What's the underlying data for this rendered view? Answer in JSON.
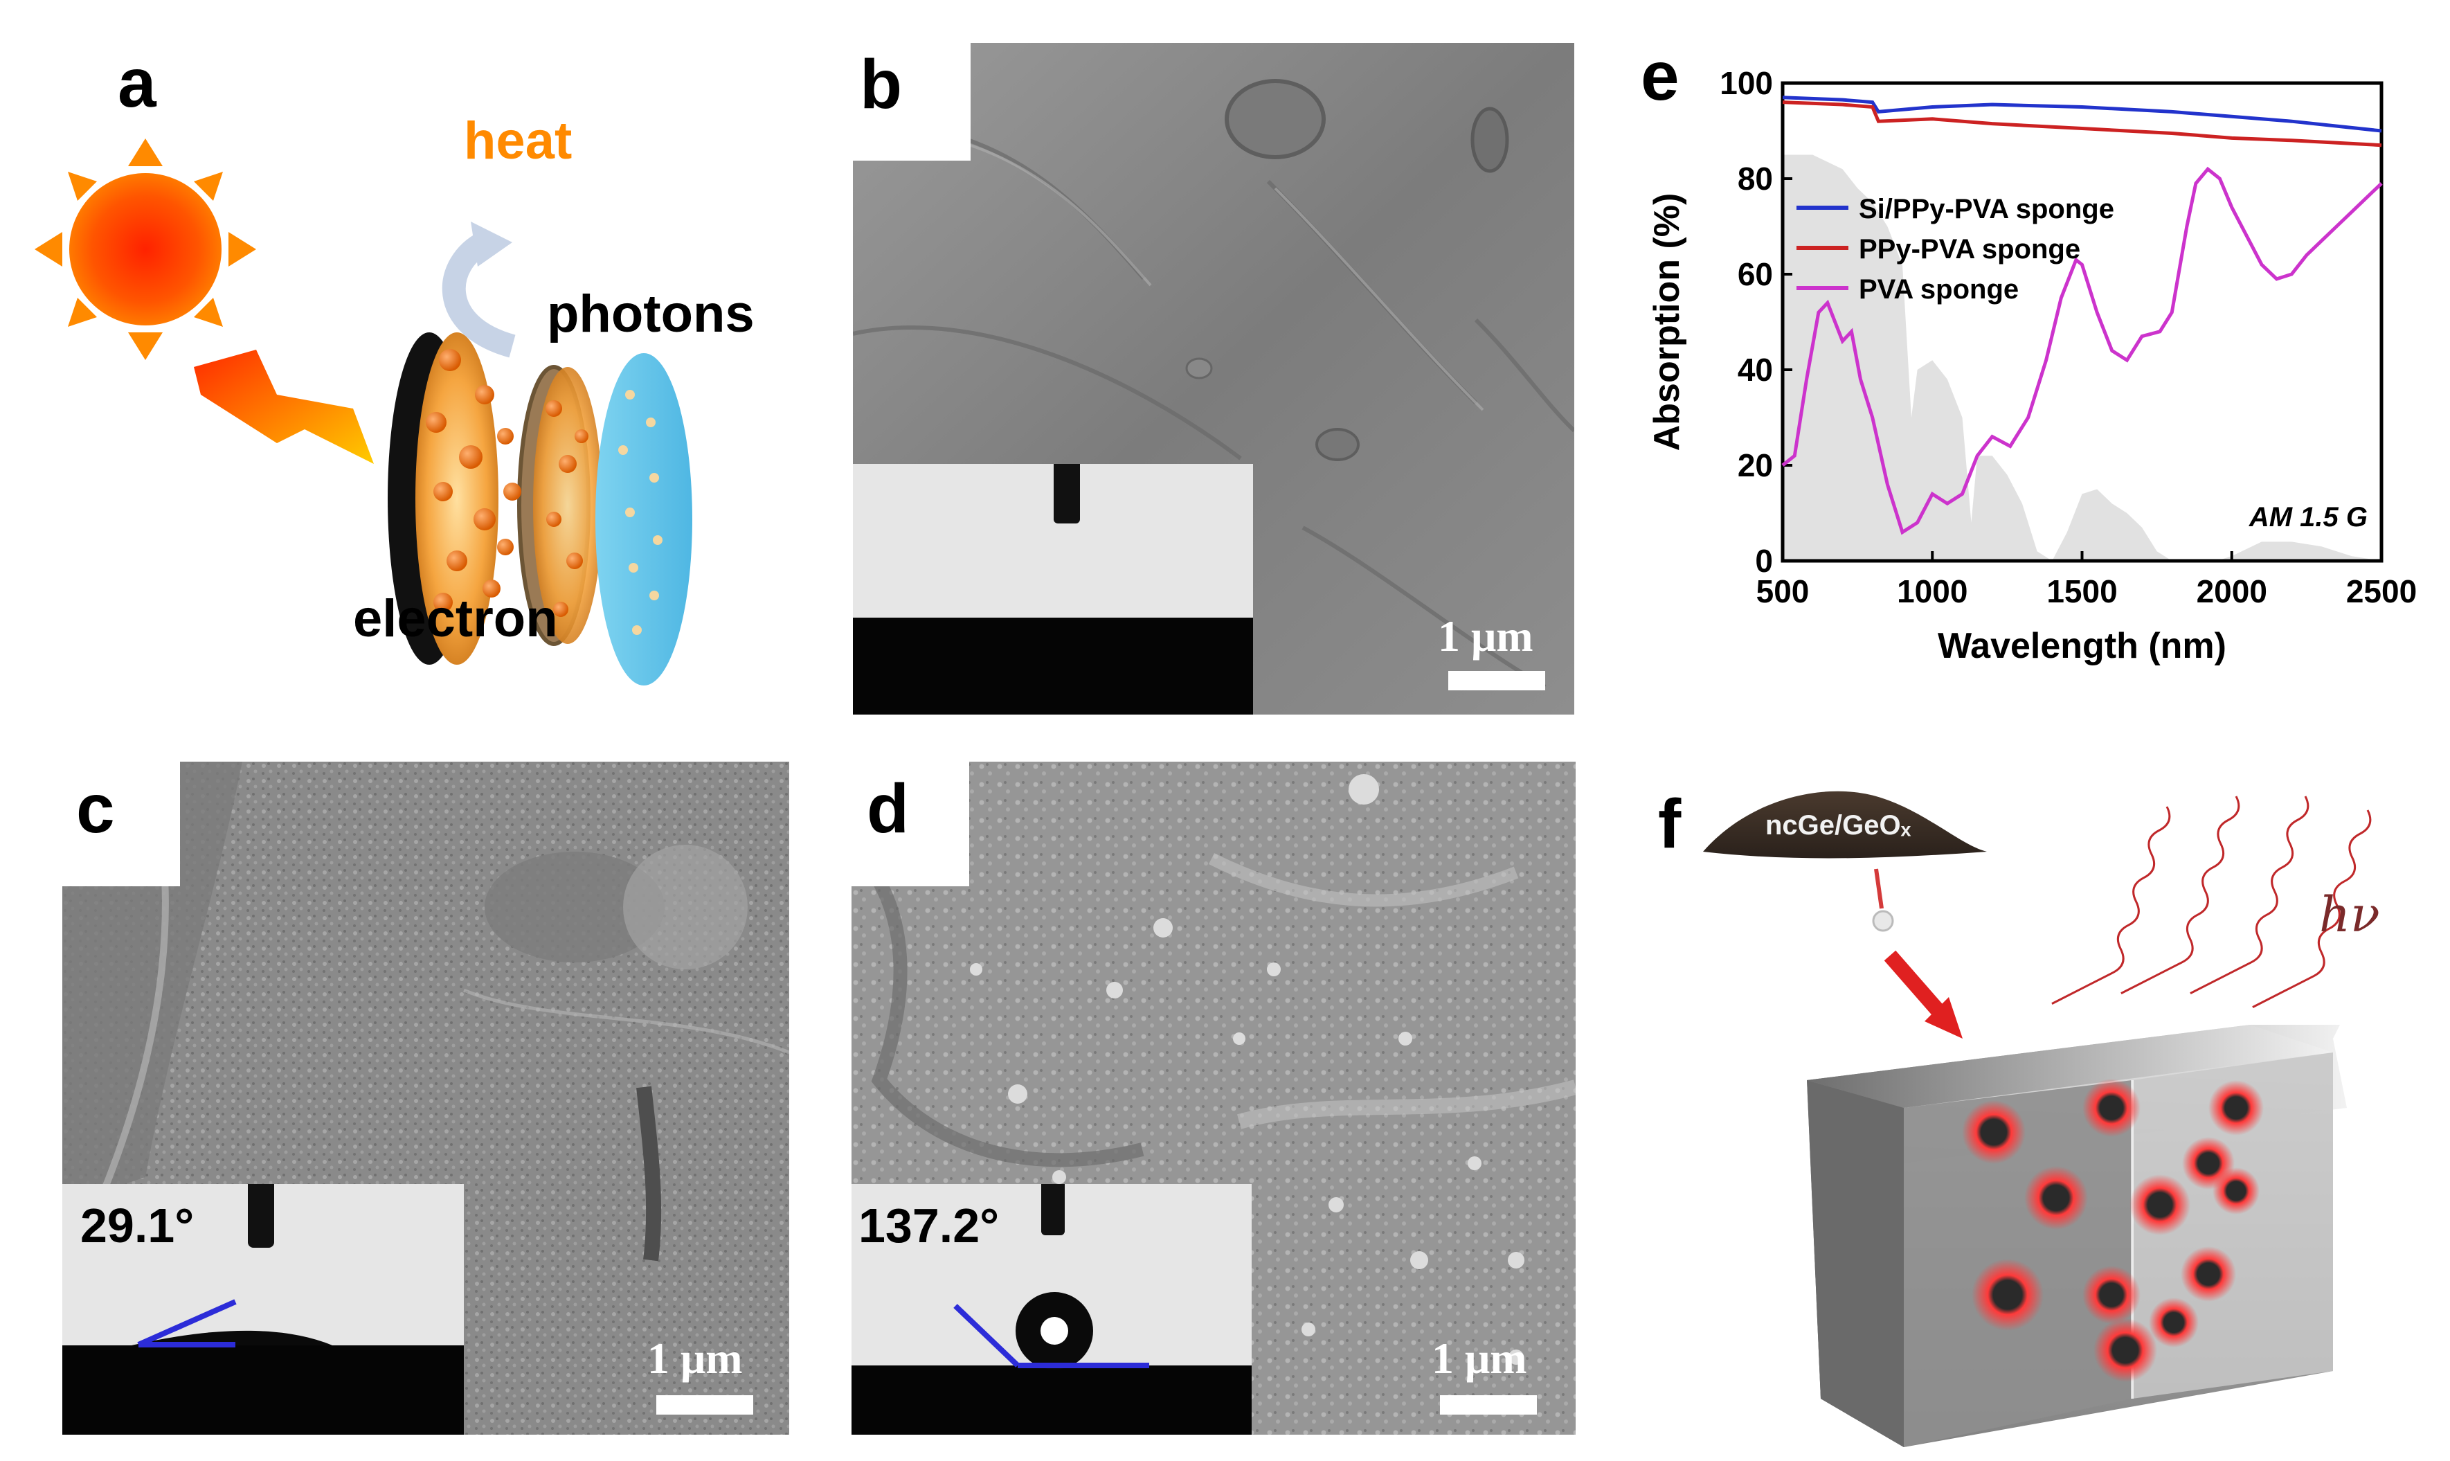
{
  "panels": {
    "a": {
      "label": "a",
      "text_heat": "heat",
      "text_photons": "photons",
      "text_electron": "electron"
    },
    "b": {
      "label": "b",
      "scale": "1 μm"
    },
    "c": {
      "label": "c",
      "scale": "1 μm",
      "contact_angle": "29.1°"
    },
    "d": {
      "label": "d",
      "scale": "1 μm",
      "contact_angle": "137.2°"
    },
    "e": {
      "label": "e"
    },
    "f": {
      "label": "f",
      "powder_label": "ncGe/GeOₓ",
      "hv_label": "hν"
    }
  },
  "chart_data": {
    "type": "line",
    "xlabel": "Wavelength (nm)",
    "ylabel": "Absorption (%)",
    "xlim": [
      500,
      2500
    ],
    "ylim": [
      0,
      100
    ],
    "xticks": [
      500,
      1000,
      1500,
      2000,
      2500
    ],
    "yticks": [
      0,
      20,
      40,
      60,
      80,
      100
    ],
    "annotation": "AM 1.5 G",
    "legend_position": "top-left",
    "series": [
      {
        "name": "Si/PPy-PVA sponge",
        "color": "#2233cc",
        "x": [
          500,
          700,
          800,
          820,
          1000,
          1200,
          1500,
          1800,
          2000,
          2200,
          2500
        ],
        "y": [
          97,
          96.5,
          96,
          94,
          95,
          95.5,
          95,
          94,
          93,
          92,
          90
        ]
      },
      {
        "name": "PPy-PVA sponge",
        "color": "#cc2222",
        "x": [
          500,
          700,
          800,
          820,
          1000,
          1200,
          1500,
          1800,
          2000,
          2200,
          2500
        ],
        "y": [
          96,
          95.5,
          95,
          92,
          92.5,
          91.5,
          90.5,
          89.5,
          88.5,
          88,
          87
        ]
      },
      {
        "name": "PVA sponge",
        "color": "#cc33cc",
        "x": [
          500,
          540,
          580,
          620,
          650,
          700,
          730,
          760,
          800,
          850,
          900,
          950,
          1000,
          1050,
          1100,
          1150,
          1200,
          1260,
          1320,
          1380,
          1430,
          1480,
          1500,
          1550,
          1600,
          1650,
          1700,
          1760,
          1800,
          1850,
          1880,
          1920,
          1960,
          2000,
          2050,
          2100,
          2150,
          2200,
          2250,
          2300,
          2350,
          2400,
          2450,
          2500
        ],
        "y": [
          20,
          22,
          38,
          52,
          54,
          46,
          48,
          38,
          30,
          16,
          6,
          8,
          14,
          12,
          14,
          22,
          26,
          24,
          30,
          42,
          55,
          63,
          62,
          52,
          44,
          42,
          47,
          48,
          52,
          70,
          79,
          82,
          80,
          74,
          68,
          62,
          59,
          60,
          64,
          67,
          70,
          73,
          76,
          79
        ]
      }
    ],
    "background_spectrum": {
      "name": "AM 1.5 G",
      "color": "#d9d9d9",
      "x": [
        500,
        600,
        700,
        750,
        800,
        850,
        900,
        930,
        950,
        1000,
        1050,
        1100,
        1130,
        1150,
        1200,
        1250,
        1300,
        1350,
        1400,
        1450,
        1500,
        1550,
        1600,
        1650,
        1700,
        1750,
        1800,
        1850,
        1900,
        1950,
        2000,
        2100,
        2200,
        2300,
        2400,
        2500
      ],
      "y": [
        85,
        85,
        82,
        78,
        75,
        70,
        62,
        30,
        40,
        42,
        38,
        30,
        8,
        22,
        22,
        18,
        12,
        2,
        0,
        6,
        14,
        15,
        12,
        10,
        7,
        2,
        0,
        0,
        0,
        0,
        1,
        4,
        4,
        3,
        1,
        0
      ]
    }
  }
}
